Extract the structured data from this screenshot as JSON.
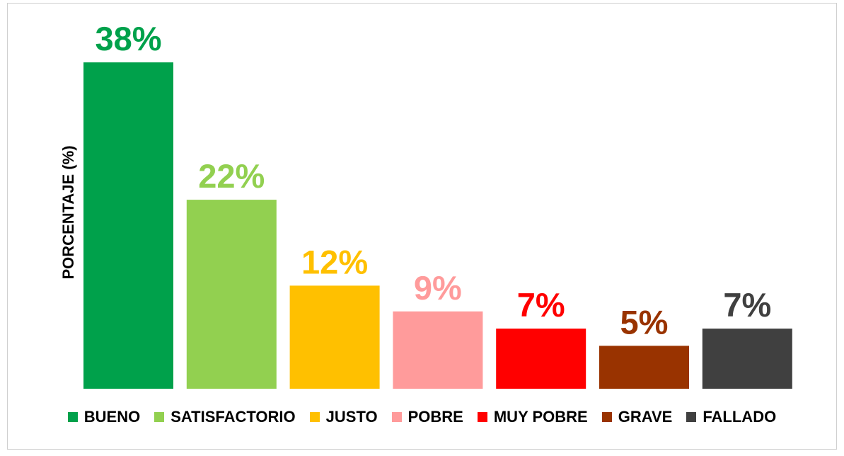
{
  "chart_data": {
    "type": "bar",
    "title": "",
    "xlabel": "",
    "ylabel": "PORCENTAJE (%)",
    "ylim": [
      0,
      40
    ],
    "grid": false,
    "legend_position": "bottom",
    "categories": [
      "BUENO",
      "SATISFACTORIO",
      "JUSTO",
      "POBRE",
      "MUY POBRE",
      "GRAVE",
      "FALLADO"
    ],
    "values": [
      38,
      22,
      12,
      9,
      7,
      5,
      7
    ],
    "value_labels": [
      "38%",
      "22%",
      "12%",
      "9%",
      "7%",
      "5%",
      "7%"
    ],
    "colors": [
      "#00A14B",
      "#92D050",
      "#FFC000",
      "#FF9B9B",
      "#FF0000",
      "#993300",
      "#404040"
    ]
  }
}
